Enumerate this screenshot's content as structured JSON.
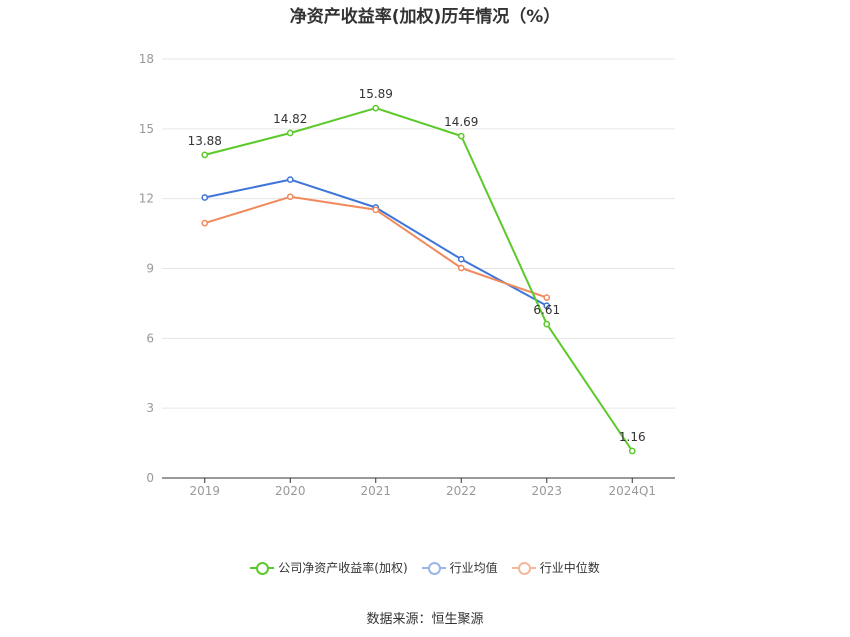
{
  "chart_data": {
    "type": "line",
    "title": "净资产收益率(加权)历年情况（%）",
    "categories": [
      "2019",
      "2020",
      "2021",
      "2022",
      "2023",
      "2024Q1"
    ],
    "yticks": [
      "0",
      "3",
      "6",
      "9",
      "12",
      "15",
      "18"
    ],
    "ylim": [
      0,
      18
    ],
    "grid": true,
    "legend_position": "bottom",
    "series": [
      {
        "name": "公司净资产收益率(加权)",
        "color": "#5cc92a",
        "values": [
          13.88,
          14.82,
          15.89,
          14.69,
          6.61,
          1.16
        ],
        "labels": [
          "13.88",
          "14.82",
          "15.89",
          "14.69",
          "6.61",
          "1.16"
        ]
      },
      {
        "name": "行业均值",
        "color": "#3d75d9",
        "values": [
          12.05,
          12.82,
          11.62,
          9.4,
          7.4,
          null
        ]
      },
      {
        "name": "行业中位数",
        "color": "#f08a5d",
        "values": [
          10.95,
          12.08,
          11.52,
          9.02,
          7.75,
          null
        ]
      }
    ]
  },
  "source": "数据来源：恒生聚源"
}
